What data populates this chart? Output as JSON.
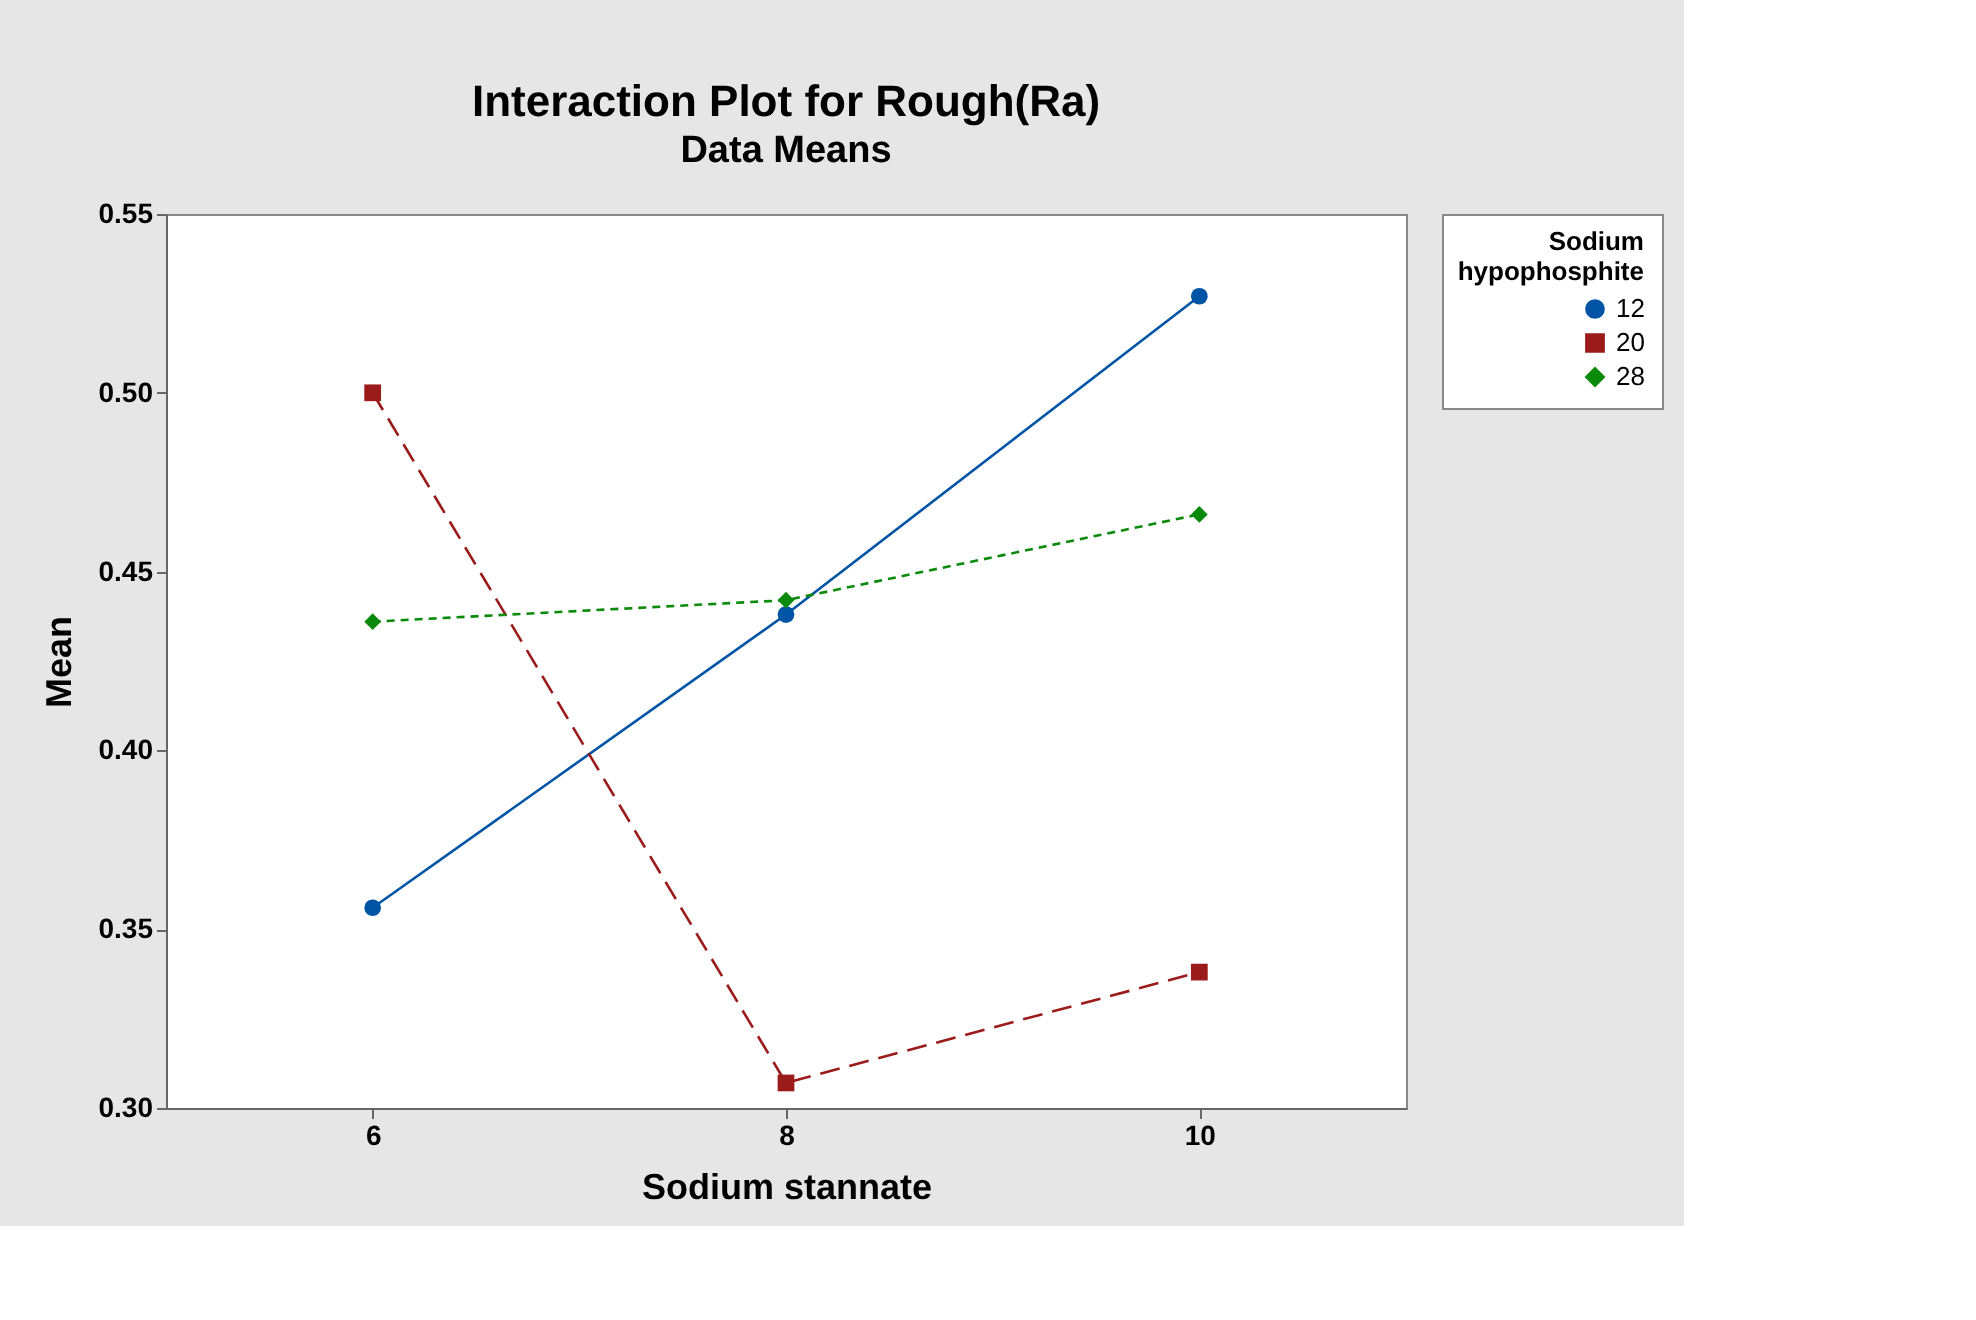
{
  "chart_data": {
    "type": "line",
    "title": "Interaction Plot for Rough(Ra)",
    "subtitle": "Data Means",
    "xlabel": "Sodium stannate",
    "ylabel": "Mean",
    "legend_title": "Sodium hypophosphite",
    "x": [
      6,
      8,
      10
    ],
    "xlim": [
      5,
      11
    ],
    "xticks": [
      6,
      8,
      10
    ],
    "ylim": [
      0.3,
      0.55
    ],
    "yticks": [
      {
        "value": 0.3,
        "label": "0.30"
      },
      0.35,
      {
        "value": 0.4,
        "label": "0.40"
      },
      0.45,
      {
        "value": 0.5,
        "label": "0.50"
      },
      0.55
    ],
    "series": [
      {
        "name": "12",
        "color": "#0054a6",
        "marker": "circle",
        "line_style": "solid",
        "values": [
          0.356,
          0.438,
          0.527
        ]
      },
      {
        "name": "20",
        "color": "#9b1b1b",
        "marker": "square",
        "line_style": "dashed",
        "values": [
          0.5,
          0.307,
          0.338
        ]
      },
      {
        "name": "28",
        "color": "#0a8a0a",
        "marker": "diamond",
        "line_style": "dotted",
        "values": [
          0.436,
          0.442,
          0.466
        ]
      }
    ],
    "grid": false,
    "legend": "right"
  }
}
